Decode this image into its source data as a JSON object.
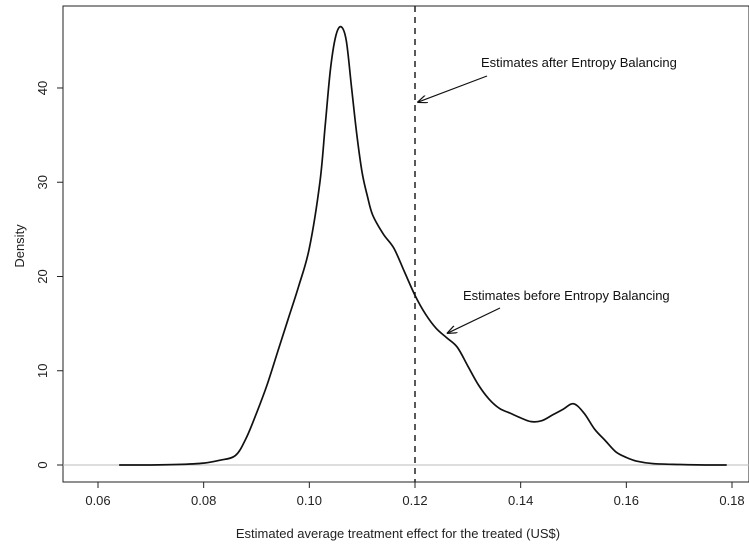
{
  "chart_data": {
    "type": "line",
    "title": "",
    "xlabel": "Estimated average treatment effect for the treated (US$)",
    "ylabel": "Density",
    "xlim": [
      0.06,
      0.18
    ],
    "ylim": [
      0,
      47
    ],
    "x_ticks": [
      "0.06",
      "0.08",
      "0.10",
      "0.12",
      "0.14",
      "0.16",
      "0.18"
    ],
    "y_ticks": [
      "0",
      "10",
      "20",
      "30",
      "40"
    ],
    "grid": false,
    "series": [
      {
        "color": "#111111",
        "x": [
          0.064,
          0.07,
          0.075,
          0.08,
          0.083,
          0.086,
          0.088,
          0.09,
          0.092,
          0.094,
          0.096,
          0.098,
          0.1,
          0.102,
          0.103,
          0.104,
          0.105,
          0.106,
          0.107,
          0.108,
          0.109,
          0.11,
          0.111,
          0.112,
          0.114,
          0.116,
          0.118,
          0.12,
          0.122,
          0.124,
          0.126,
          0.128,
          0.13,
          0.132,
          0.134,
          0.136,
          0.138,
          0.14,
          0.142,
          0.144,
          0.146,
          0.148,
          0.15,
          0.152,
          0.154,
          0.156,
          0.158,
          0.16,
          0.162,
          0.165,
          0.17,
          0.175,
          0.179
        ],
        "y": [
          0.0,
          0.0,
          0.05,
          0.2,
          0.5,
          1.0,
          2.8,
          5.5,
          8.5,
          12.0,
          15.5,
          19.0,
          23.0,
          30.0,
          36.0,
          42.0,
          45.5,
          46.5,
          45.0,
          40.0,
          35.0,
          31.0,
          28.5,
          26.5,
          24.5,
          23.0,
          20.5,
          18.0,
          16.0,
          14.5,
          13.5,
          12.5,
          10.5,
          8.5,
          7.0,
          6.0,
          5.5,
          5.0,
          4.6,
          4.7,
          5.3,
          5.9,
          6.5,
          5.5,
          3.8,
          2.6,
          1.4,
          0.8,
          0.4,
          0.15,
          0.05,
          0.0,
          0.0
        ]
      }
    ],
    "vline": {
      "x": 0.12,
      "style": "dashed"
    },
    "hline": {
      "y": 0,
      "color": "#bbbbbb"
    },
    "annotations": [
      {
        "text": "Estimates after Entropy Balancing",
        "point_to_x": 0.1206,
        "point_to_y": 38.5
      },
      {
        "text": "Estimates before Entropy Balancing",
        "point_to_x": 0.1262,
        "point_to_y": 14.0
      }
    ]
  }
}
